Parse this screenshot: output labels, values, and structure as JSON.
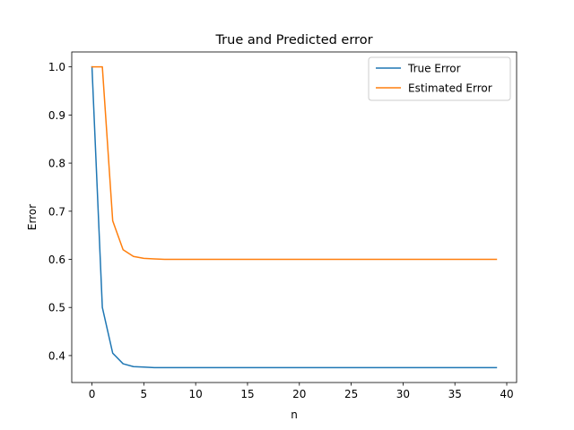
{
  "chart_data": {
    "type": "line",
    "title": "True and Predicted error",
    "xlabel": "n",
    "ylabel": "Error",
    "xlim": [
      -1.95,
      40.95
    ],
    "ylim": [
      0.344,
      1.031
    ],
    "xticks": [
      0,
      5,
      10,
      15,
      20,
      25,
      30,
      35,
      40
    ],
    "xtick_labels": [
      "0",
      "5",
      "10",
      "15",
      "20",
      "25",
      "30",
      "35",
      "40"
    ],
    "yticks": [
      0.4,
      0.5,
      0.6,
      0.7,
      0.8,
      0.9,
      1.0
    ],
    "ytick_labels": [
      "0.4",
      "0.5",
      "0.6",
      "0.7",
      "0.8",
      "0.9",
      "1.0"
    ],
    "grid": false,
    "legend_position": "top-right",
    "x": [
      0,
      1,
      2,
      3,
      4,
      5,
      6,
      7,
      8,
      9,
      10,
      11,
      12,
      13,
      14,
      15,
      16,
      17,
      18,
      19,
      20,
      21,
      22,
      23,
      24,
      25,
      26,
      27,
      28,
      29,
      30,
      31,
      32,
      33,
      34,
      35,
      36,
      37,
      38,
      39
    ],
    "series": [
      {
        "name": "True Error",
        "color": "#1f77b4",
        "values": [
          1.0,
          0.5,
          0.405,
          0.383,
          0.377,
          0.376,
          0.375,
          0.375,
          0.375,
          0.375,
          0.375,
          0.375,
          0.375,
          0.375,
          0.375,
          0.375,
          0.375,
          0.375,
          0.375,
          0.375,
          0.375,
          0.375,
          0.375,
          0.375,
          0.375,
          0.375,
          0.375,
          0.375,
          0.375,
          0.375,
          0.375,
          0.375,
          0.375,
          0.375,
          0.375,
          0.375,
          0.375,
          0.375,
          0.375,
          0.375
        ]
      },
      {
        "name": "Estimated Error",
        "color": "#ff7f0e",
        "values": [
          1.0,
          1.0,
          0.68,
          0.62,
          0.606,
          0.602,
          0.601,
          0.6,
          0.6,
          0.6,
          0.6,
          0.6,
          0.6,
          0.6,
          0.6,
          0.6,
          0.6,
          0.6,
          0.6,
          0.6,
          0.6,
          0.6,
          0.6,
          0.6,
          0.6,
          0.6,
          0.6,
          0.6,
          0.6,
          0.6,
          0.6,
          0.6,
          0.6,
          0.6,
          0.6,
          0.6,
          0.6,
          0.6,
          0.6,
          0.6
        ]
      }
    ]
  }
}
